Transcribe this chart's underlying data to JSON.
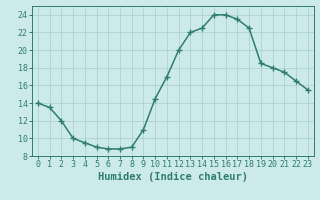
{
  "x": [
    0,
    1,
    2,
    3,
    4,
    5,
    6,
    7,
    8,
    9,
    10,
    11,
    12,
    13,
    14,
    15,
    16,
    17,
    18,
    19,
    20,
    21,
    22,
    23
  ],
  "y": [
    14,
    13.5,
    12,
    10,
    9.5,
    9,
    8.8,
    8.8,
    9,
    11,
    14.5,
    17,
    20,
    22,
    22.5,
    24,
    24,
    23.5,
    22.5,
    18.5,
    18,
    17.5,
    16.5,
    15.5
  ],
  "line_color": "#2e7d6e",
  "marker": "+",
  "marker_size": 4,
  "background_color": "#cceaea",
  "grid_color": "#aacccc",
  "xlabel": "Humidex (Indice chaleur)",
  "xlim": [
    -0.5,
    23.5
  ],
  "ylim": [
    8,
    25
  ],
  "yticks": [
    8,
    10,
    12,
    14,
    16,
    18,
    20,
    22,
    24
  ],
  "xticks": [
    0,
    1,
    2,
    3,
    4,
    5,
    6,
    7,
    8,
    9,
    10,
    11,
    12,
    13,
    14,
    15,
    16,
    17,
    18,
    19,
    20,
    21,
    22,
    23
  ],
  "axis_label_fontsize": 7.5,
  "tick_fontsize": 6,
  "line_width": 1.1,
  "marker_edge_width": 1.0
}
